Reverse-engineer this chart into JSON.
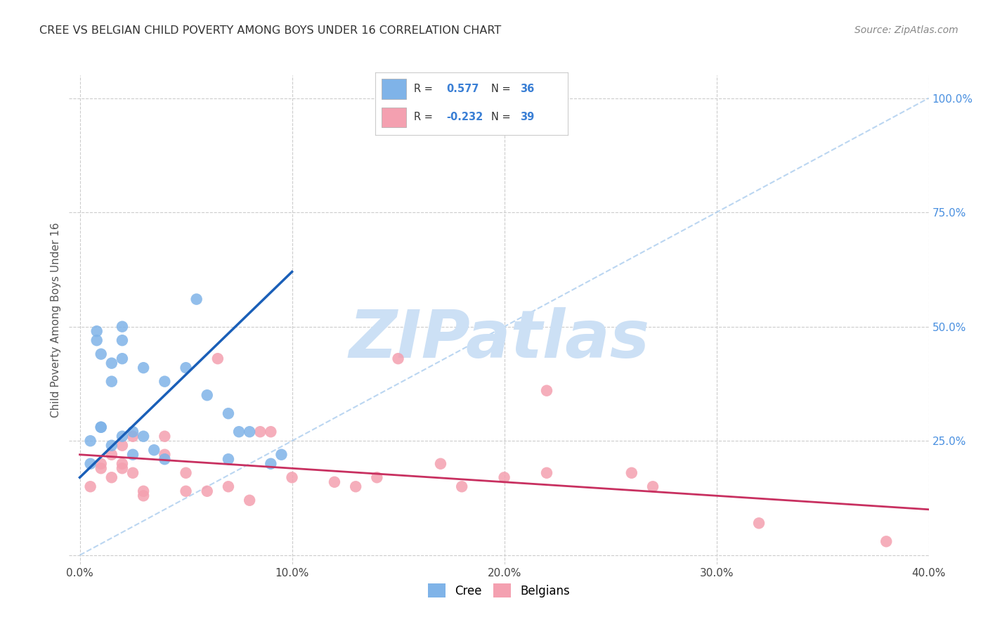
{
  "title": "CREE VS BELGIAN CHILD POVERTY AMONG BOYS UNDER 16 CORRELATION CHART",
  "source": "Source: ZipAtlas.com",
  "ylabel": "Child Poverty Among Boys Under 16",
  "x_tick_labels": [
    "0.0%",
    "10.0%",
    "20.0%",
    "30.0%",
    "40.0%"
  ],
  "x_tick_values": [
    0,
    10,
    20,
    30,
    40
  ],
  "y_tick_labels_right": [
    "100.0%",
    "75.0%",
    "50.0%",
    "25.0%"
  ],
  "y_tick_values_right": [
    100,
    75,
    50,
    25
  ],
  "xlim": [
    -0.5,
    40
  ],
  "ylim": [
    -2,
    105
  ],
  "cree_color": "#7fb3e8",
  "cree_line_color": "#1a5fb8",
  "belgian_color": "#f4a0b0",
  "belgian_line_color": "#c83060",
  "watermark": "ZIPatlas",
  "watermark_color": "#cce0f5",
  "background_color": "#ffffff",
  "grid_color": "#cccccc",
  "legend_blue": "#3a7fd5",
  "cree_scatter_x": [
    0.5,
    0.5,
    0.8,
    0.8,
    1.0,
    1.0,
    1.0,
    1.5,
    1.5,
    1.5,
    2.0,
    2.0,
    2.0,
    2.0,
    2.5,
    2.5,
    3.0,
    3.0,
    3.5,
    4.0,
    4.0,
    5.0,
    5.5,
    6.0,
    7.0,
    7.0,
    7.5,
    8.0,
    9.0,
    9.5
  ],
  "cree_scatter_y": [
    20,
    25,
    47,
    49,
    28,
    44,
    28,
    38,
    42,
    24,
    47,
    50,
    26,
    43,
    22,
    27,
    41,
    26,
    23,
    38,
    21,
    41,
    56,
    35,
    21,
    31,
    27,
    27,
    20,
    22
  ],
  "belgian_scatter_x": [
    0.5,
    1.0,
    1.0,
    1.5,
    1.5,
    2.0,
    2.0,
    2.0,
    2.5,
    2.5,
    3.0,
    3.0,
    4.0,
    4.0,
    5.0,
    5.0,
    6.0,
    6.5,
    7.0,
    8.0,
    8.5,
    9.0,
    10.0,
    12.0,
    13.0,
    14.0,
    15.0,
    17.0,
    18.0,
    20.0,
    22.0,
    22.0,
    26.0,
    27.0,
    32.0,
    38.0
  ],
  "belgian_scatter_y": [
    15,
    19,
    20,
    17,
    22,
    19,
    20,
    24,
    18,
    26,
    13,
    14,
    22,
    26,
    14,
    18,
    14,
    43,
    15,
    12,
    27,
    27,
    17,
    16,
    15,
    17,
    43,
    20,
    15,
    17,
    36,
    18,
    18,
    15,
    7,
    3
  ],
  "cree_line_x": [
    0,
    10
  ],
  "cree_line_y": [
    17,
    62
  ],
  "belgian_line_x": [
    0,
    40
  ],
  "belgian_line_y": [
    22,
    10
  ],
  "diagonal_line_x": [
    0,
    40
  ],
  "diagonal_line_y": [
    0,
    100
  ]
}
